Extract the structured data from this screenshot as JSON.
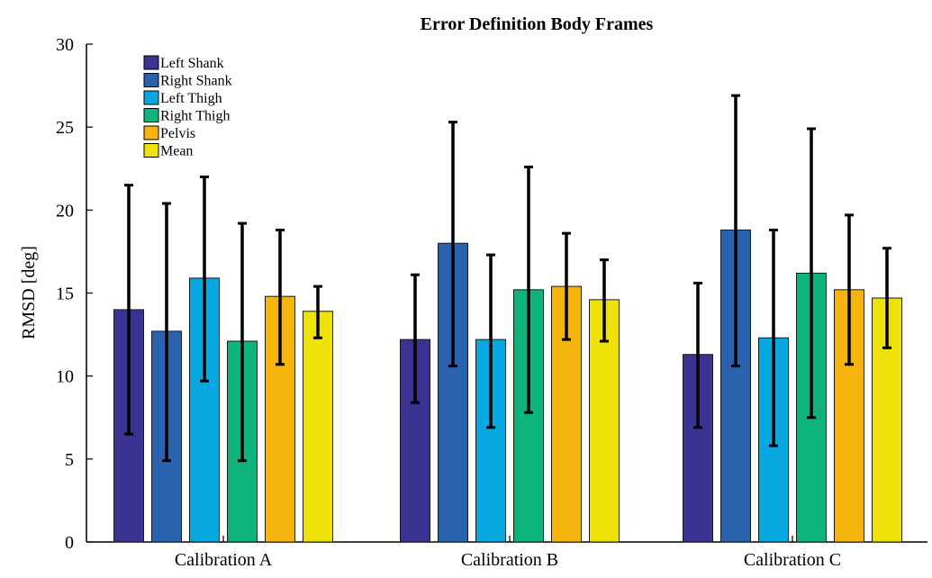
{
  "chart_data": {
    "type": "bar",
    "title": "Error Definition Body Frames",
    "xlabel": "",
    "ylabel": "RMSD [deg]",
    "ylim": [
      0,
      30
    ],
    "yticks": [
      0,
      5,
      10,
      15,
      20,
      25,
      30
    ],
    "grid": false,
    "legend_position": "top-left",
    "categories": [
      "Calibration A",
      "Calibration B",
      "Calibration C"
    ],
    "series": [
      {
        "name": "Left Shank",
        "color": "#3a3391",
        "values": [
          14.0,
          12.2,
          11.3
        ],
        "error_low": [
          6.5,
          8.4,
          6.9
        ],
        "error_high": [
          21.5,
          16.1,
          15.6
        ]
      },
      {
        "name": "Right Shank",
        "color": "#2a62b0",
        "values": [
          12.7,
          18.0,
          18.8
        ],
        "error_low": [
          4.9,
          10.6,
          10.6
        ],
        "error_high": [
          20.4,
          25.3,
          26.9
        ]
      },
      {
        "name": "Left Thigh",
        "color": "#07a7e0",
        "values": [
          15.9,
          12.2,
          12.3
        ],
        "error_low": [
          9.7,
          6.9,
          5.8
        ],
        "error_high": [
          22.0,
          17.3,
          18.8
        ]
      },
      {
        "name": "Right Thigh",
        "color": "#0db37b",
        "values": [
          12.1,
          15.2,
          16.2
        ],
        "error_low": [
          4.9,
          7.8,
          7.5
        ],
        "error_high": [
          19.2,
          22.6,
          24.9
        ]
      },
      {
        "name": "Pelvis",
        "color": "#f5b50e",
        "values": [
          14.8,
          15.4,
          15.2
        ],
        "error_low": [
          10.7,
          12.2,
          10.7
        ],
        "error_high": [
          18.8,
          18.6,
          19.7
        ]
      },
      {
        "name": "Mean",
        "color": "#efe208",
        "values": [
          13.9,
          14.6,
          14.7
        ],
        "error_low": [
          12.3,
          12.1,
          11.7
        ],
        "error_high": [
          15.4,
          17.0,
          17.7
        ]
      }
    ]
  }
}
